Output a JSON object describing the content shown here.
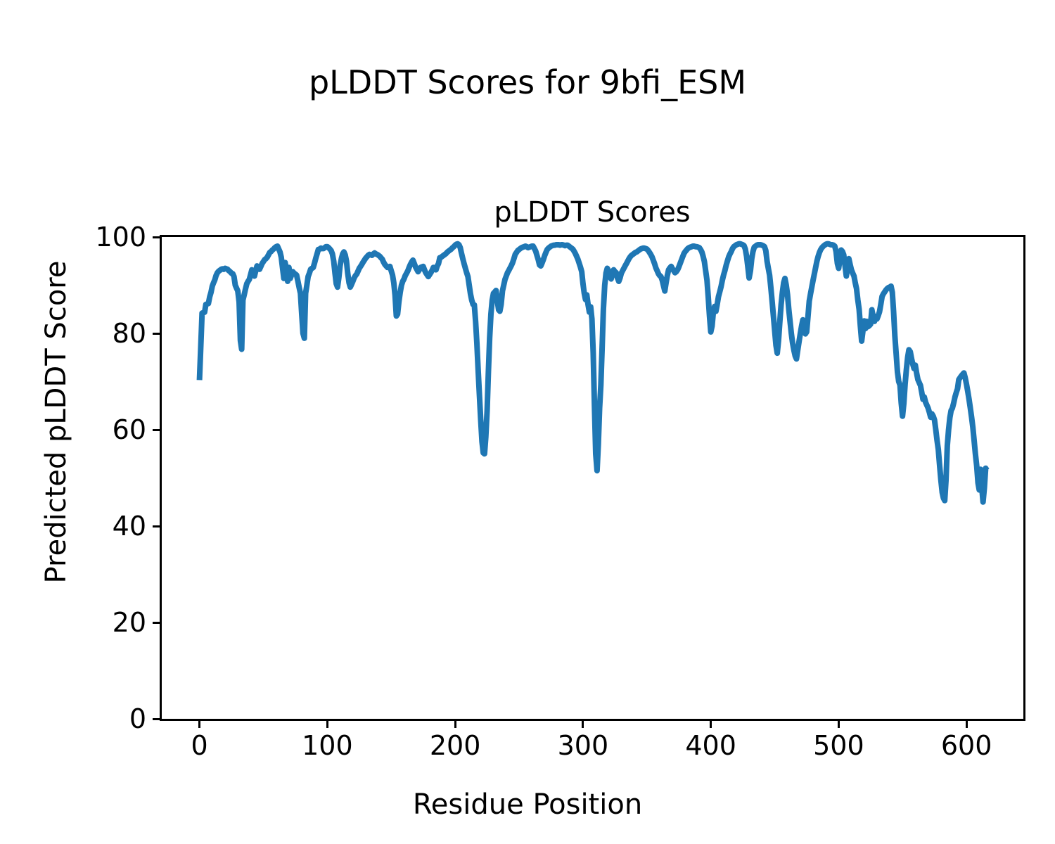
{
  "figure": {
    "suptitle": "pLDDT Scores for 9bfi_ESM"
  },
  "chart_data": {
    "type": "line",
    "title": "pLDDT Scores",
    "xlabel": "Residue Position",
    "ylabel": "Predicted pLDDT Score",
    "xlim": [
      -29.5,
      644.5
    ],
    "ylim": [
      0,
      100
    ],
    "xticks": [
      0,
      100,
      200,
      300,
      400,
      500,
      600
    ],
    "yticks": [
      0,
      20,
      40,
      60,
      80,
      100
    ],
    "grid": false,
    "legend": null,
    "line_color": "#1f77b4",
    "line_width": 8,
    "x_start": 0,
    "x_step": 1,
    "values": [
      70.3,
      77.0,
      84.2,
      84.3,
      84.4,
      86.0,
      86.1,
      86.2,
      87.6,
      88.5,
      89.8,
      90.5,
      91.1,
      92.0,
      92.6,
      92.9,
      93.1,
      93.3,
      93.4,
      93.3,
      93.5,
      93.4,
      93.3,
      93.0,
      92.8,
      92.5,
      92.4,
      91.8,
      90.0,
      89.4,
      88.8,
      86.5,
      78.5,
      76.7,
      86.9,
      88.0,
      89.2,
      90.3,
      90.8,
      91.2,
      92.2,
      93.2,
      92.5,
      91.9,
      93.0,
      94.0,
      93.6,
      93.3,
      93.9,
      94.5,
      94.9,
      95.3,
      95.5,
      95.8,
      96.3,
      96.8,
      97.0,
      97.3,
      97.5,
      97.8,
      98.0,
      98.1,
      97.5,
      96.9,
      95.8,
      93.5,
      91.4,
      94.7,
      93.3,
      90.8,
      93.7,
      91.4,
      92.1,
      92.8,
      92.5,
      92.3,
      92.1,
      90.8,
      89.5,
      88.3,
      84.0,
      80.0,
      79.0,
      88.3,
      90.0,
      91.8,
      92.5,
      93.3,
      93.5,
      93.7,
      94.6,
      95.6,
      96.5,
      97.4,
      97.5,
      97.7,
      97.6,
      97.6,
      97.8,
      98.0,
      98.0,
      97.8,
      97.5,
      97.2,
      96.5,
      95.0,
      92.5,
      90.3,
      89.6,
      91.5,
      94.0,
      95.5,
      96.5,
      96.9,
      96.3,
      95.0,
      92.5,
      90.5,
      89.6,
      90.2,
      90.8,
      91.5,
      92.0,
      92.3,
      92.9,
      93.5,
      93.9,
      94.3,
      94.8,
      95.2,
      95.6,
      95.9,
      96.2,
      96.4,
      96.3,
      96.2,
      96.5,
      96.7,
      96.5,
      96.4,
      96.2,
      96.0,
      95.7,
      95.4,
      94.8,
      94.3,
      94.0,
      93.7,
      93.8,
      93.9,
      93.0,
      92.1,
      90.5,
      87.9,
      83.6,
      84.0,
      86.5,
      88.5,
      90.0,
      90.8,
      91.3,
      92.0,
      92.5,
      93.0,
      93.7,
      94.3,
      94.8,
      95.2,
      94.5,
      93.8,
      93.3,
      92.8,
      93.2,
      93.7,
      93.8,
      93.9,
      93.2,
      92.6,
      92.2,
      91.8,
      92.2,
      92.6,
      93.1,
      93.7,
      93.4,
      93.2,
      94.0,
      94.5,
      95.7,
      95.8,
      96.0,
      96.2,
      96.4,
      96.6,
      96.9,
      97.1,
      97.3,
      97.5,
      97.8,
      98.0,
      98.3,
      98.5,
      98.6,
      98.4,
      97.8,
      96.6,
      95.5,
      94.5,
      93.5,
      92.6,
      91.8,
      90.0,
      88.2,
      86.9,
      86.0,
      85.9,
      82.5,
      78.0,
      72.5,
      67.0,
      62.0,
      57.5,
      55.2,
      55.0,
      58.5,
      64.0,
      72.0,
      79.1,
      84.0,
      86.9,
      88.3,
      88.6,
      88.9,
      86.8,
      84.9,
      84.6,
      86.0,
      88.8,
      90.0,
      91.2,
      91.9,
      92.6,
      93.1,
      93.6,
      94.1,
      94.7,
      95.5,
      96.4,
      96.8,
      97.2,
      97.4,
      97.6,
      97.8,
      97.9,
      98.0,
      98.1,
      98.0,
      97.8,
      97.9,
      98.0,
      98.1,
      98.1,
      97.6,
      97.1,
      96.2,
      95.3,
      94.2,
      94.0,
      94.6,
      95.3,
      96.1,
      96.8,
      97.4,
      97.7,
      97.9,
      98.1,
      98.2,
      98.3,
      98.3,
      98.4,
      98.4,
      98.4,
      98.3,
      98.4,
      98.4,
      98.3,
      98.2,
      98.3,
      98.3,
      98.1,
      97.9,
      97.7,
      97.5,
      97.1,
      96.6,
      96.0,
      95.4,
      94.6,
      93.8,
      92.8,
      90.3,
      88.3,
      87.0,
      88.0,
      86.0,
      84.4,
      85.5,
      83.0,
      76.0,
      65.0,
      55.0,
      51.5,
      57.0,
      64.5,
      69.3,
      77.0,
      85.0,
      90.0,
      92.5,
      93.5,
      93.0,
      91.8,
      91.3,
      92.3,
      93.2,
      92.8,
      92.6,
      91.5,
      90.8,
      91.5,
      92.5,
      93.0,
      93.5,
      94.0,
      94.5,
      95.0,
      95.5,
      95.9,
      96.2,
      96.4,
      96.6,
      96.8,
      96.9,
      97.1,
      97.3,
      97.5,
      97.6,
      97.7,
      97.7,
      97.6,
      97.5,
      97.2,
      96.8,
      96.4,
      95.9,
      95.2,
      94.5,
      93.6,
      93.0,
      92.4,
      92.0,
      91.8,
      91.0,
      89.9,
      88.8,
      90.5,
      92.0,
      93.2,
      93.6,
      93.9,
      93.4,
      93.0,
      92.6,
      92.8,
      93.2,
      93.8,
      94.5,
      95.2,
      95.9,
      96.6,
      97.0,
      97.3,
      97.6,
      97.8,
      97.9,
      98.0,
      98.1,
      98.1,
      98.0,
      98.0,
      97.9,
      97.8,
      97.4,
      96.9,
      96.0,
      94.9,
      93.0,
      91.0,
      87.5,
      83.5,
      80.3,
      81.5,
      84.5,
      85.6,
      84.6,
      86.0,
      87.6,
      88.6,
      89.7,
      91.0,
      92.1,
      93.0,
      94.1,
      95.0,
      95.9,
      96.5,
      97.0,
      97.6,
      98.0,
      98.2,
      98.4,
      98.5,
      98.6,
      98.6,
      98.5,
      98.4,
      98.2,
      97.5,
      96.0,
      93.8,
      91.5,
      93.0,
      95.5,
      97.0,
      97.9,
      98.1,
      98.3,
      98.4,
      98.4,
      98.4,
      98.3,
      98.2,
      98.0,
      97.2,
      95.0,
      93.5,
      92.1,
      89.5,
      86.5,
      83.5,
      80.5,
      77.5,
      75.9,
      78.5,
      82.5,
      86.0,
      88.5,
      90.5,
      91.4,
      90.0,
      88.0,
      85.0,
      82.5,
      80.0,
      78.0,
      76.5,
      75.3,
      74.7,
      76.5,
      78.2,
      79.9,
      81.5,
      82.8,
      80.5,
      79.9,
      80.3,
      83.5,
      86.7,
      88.2,
      89.6,
      91.0,
      92.3,
      93.7,
      95.0,
      96.0,
      96.8,
      97.4,
      97.8,
      98.1,
      98.3,
      98.5,
      98.6,
      98.6,
      98.5,
      98.4,
      98.4,
      98.3,
      98.1,
      97.0,
      94.5,
      93.5,
      95.5,
      97.3,
      97.0,
      96.3,
      94.0,
      91.9,
      93.5,
      95.5,
      94.3,
      93.2,
      92.5,
      91.9,
      90.5,
      89.3,
      87.0,
      85.0,
      81.5,
      78.4,
      80.5,
      82.6,
      81.0,
      82.5,
      81.4,
      81.6,
      81.9,
      84.9,
      83.5,
      82.5,
      83.5,
      83.0,
      83.7,
      84.5,
      86.0,
      87.7,
      88.2,
      88.6,
      89.0,
      89.3,
      89.5,
      89.6,
      89.8,
      88.5,
      84.5,
      79.5,
      75.7,
      72.0,
      70.0,
      69.3,
      65.5,
      62.8,
      65.5,
      69.5,
      72.5,
      75.0,
      76.6,
      76.2,
      74.8,
      73.6,
      72.7,
      73.4,
      71.8,
      70.4,
      69.8,
      69.2,
      67.8,
      66.3,
      66.8,
      65.7,
      65.1,
      64.5,
      63.6,
      62.6,
      63.3,
      62.8,
      62.0,
      60.0,
      57.8,
      55.9,
      52.5,
      49.5,
      47.0,
      45.8,
      45.3,
      49.5,
      56.7,
      60.0,
      62.5,
      64.0,
      64.5,
      65.5,
      66.8,
      67.7,
      68.5,
      70.4,
      70.8,
      71.2,
      71.5,
      71.8,
      70.8,
      69.5,
      68.0,
      66.3,
      64.5,
      62.6,
      60.5,
      57.8,
      55.0,
      52.5,
      49.0,
      47.5,
      51.8,
      48.0,
      45.0,
      48.0,
      52.0,
      51.6
    ]
  }
}
